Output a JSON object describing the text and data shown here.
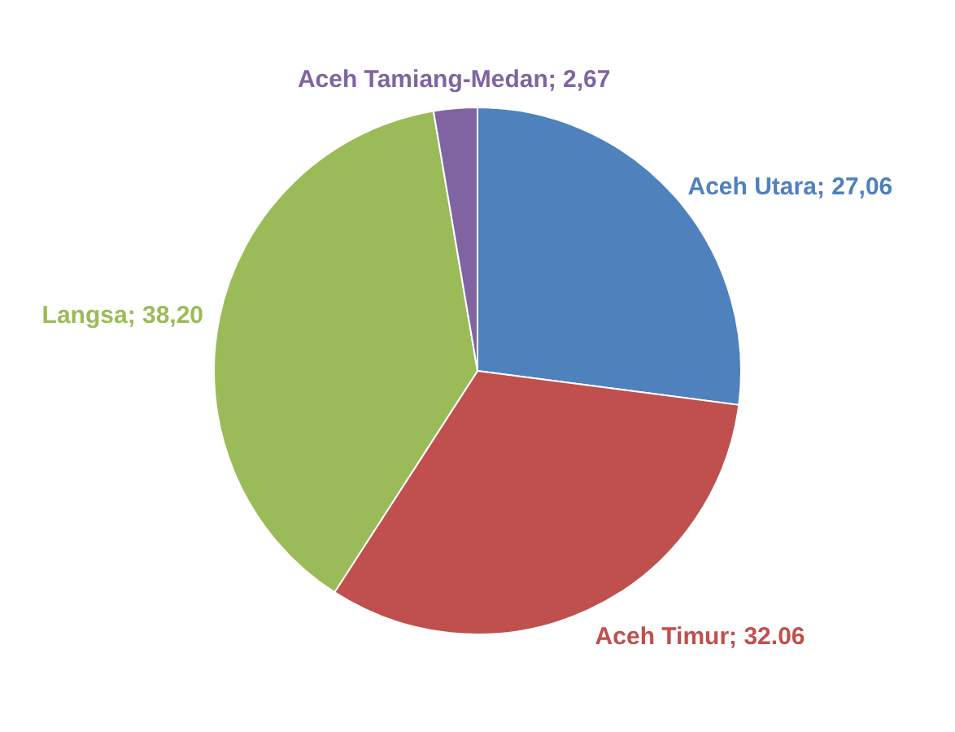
{
  "chart_data": {
    "type": "pie",
    "categories": [
      "Aceh Utara",
      "Aceh Timur",
      "Langsa",
      "Aceh Tamiang-Medan"
    ],
    "values": [
      27.06,
      32.06,
      38.2,
      2.67
    ],
    "value_labels": [
      "27,06",
      "32.06",
      "38,20",
      "2,67"
    ],
    "colors": [
      "#4f81bd",
      "#c0504d",
      "#9bbb59",
      "#8064a2"
    ]
  }
}
